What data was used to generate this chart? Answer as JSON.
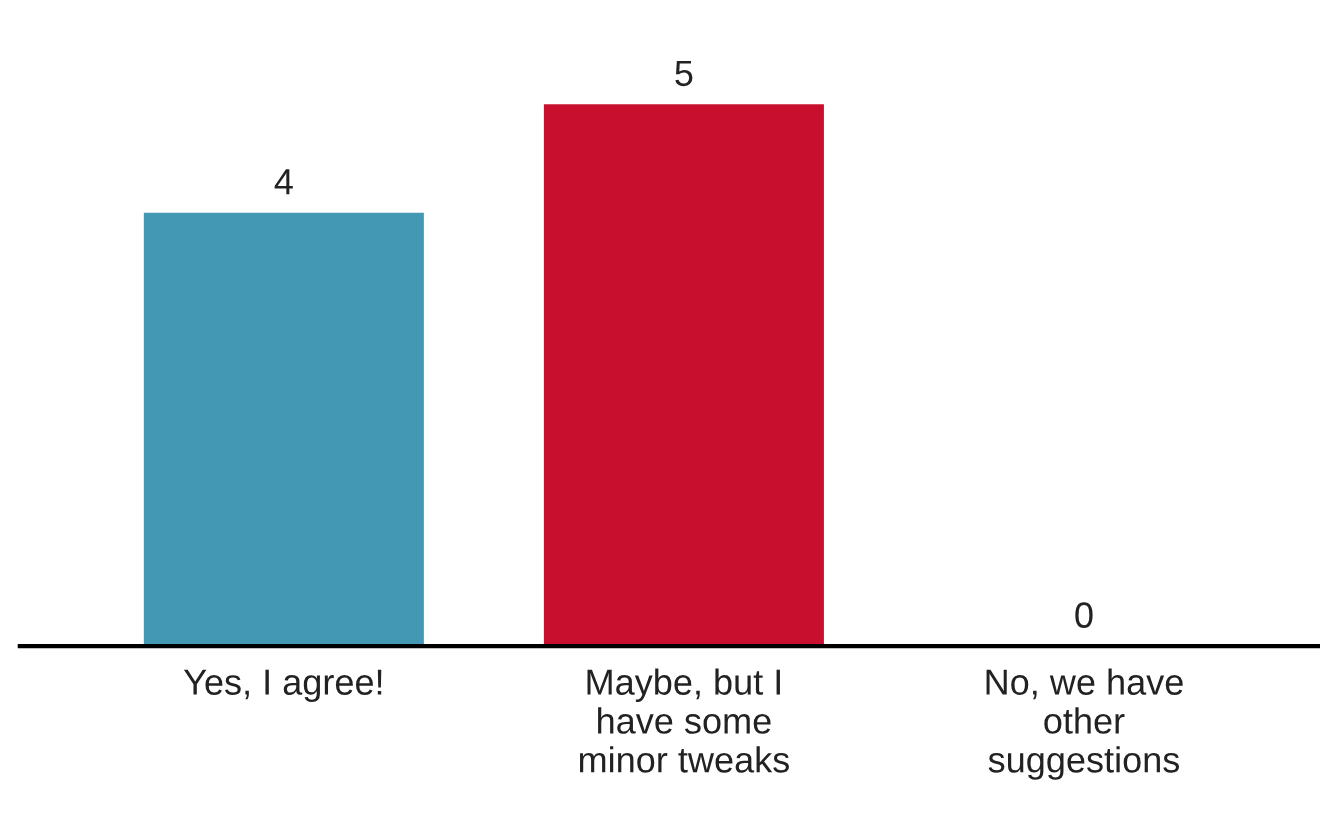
{
  "chart_data": {
    "type": "bar",
    "categories": [
      "Yes, I agree!",
      "Maybe, but I\nhave some\nminor tweaks",
      "No, we have\nother\nsuggestions"
    ],
    "values": [
      4,
      5,
      0
    ],
    "colors": [
      "#4398b4",
      "#c8102e",
      "#9e9e9e"
    ],
    "data_labels": true,
    "grid": false,
    "legend": false
  }
}
